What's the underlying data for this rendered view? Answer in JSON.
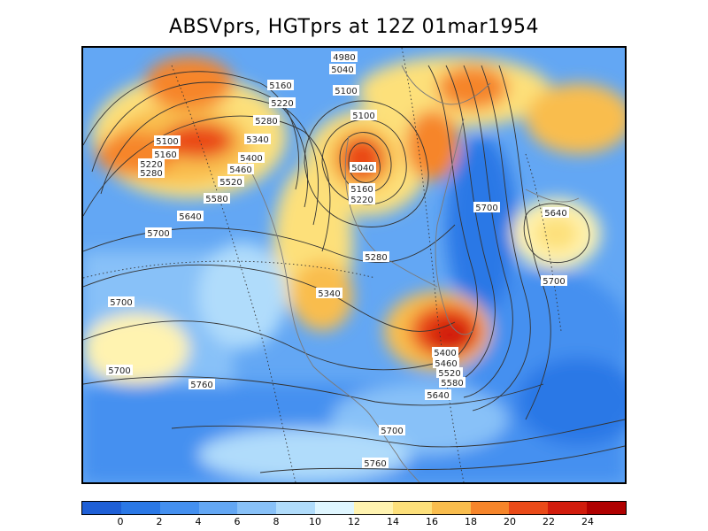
{
  "title": "ABSVprs, HGTprs at 12Z  01mar1954",
  "shading": {
    "variable": "ABSVprs",
    "colorbar_labels": [
      "0",
      "2",
      "4",
      "6",
      "8",
      "10",
      "12",
      "14",
      "16",
      "18",
      "20",
      "22",
      "24"
    ],
    "colors": [
      "#1e5fd6",
      "#2a78e6",
      "#4490f0",
      "#63a7f4",
      "#88c1f8",
      "#b0dcfb",
      "#dff6ff",
      "#fff3b0",
      "#fde07a",
      "#f9bd4d",
      "#f6852a",
      "#ea4a18",
      "#d21c0c",
      "#b00000"
    ]
  },
  "contours": {
    "variable": "HGTprs",
    "labels": [
      "4980",
      "5040",
      "5100",
      "5160",
      "5220",
      "5280",
      "5100",
      "5160",
      "5220",
      "5280",
      "5340",
      "5400",
      "5460",
      "5520",
      "5580",
      "5640",
      "5700",
      "5100",
      "5040",
      "5160",
      "5220",
      "5280",
      "5340",
      "5700",
      "5640",
      "5700",
      "5700",
      "5400",
      "5460",
      "5520",
      "5580",
      "5640",
      "5700",
      "5760",
      "5700",
      "5760"
    ]
  }
}
